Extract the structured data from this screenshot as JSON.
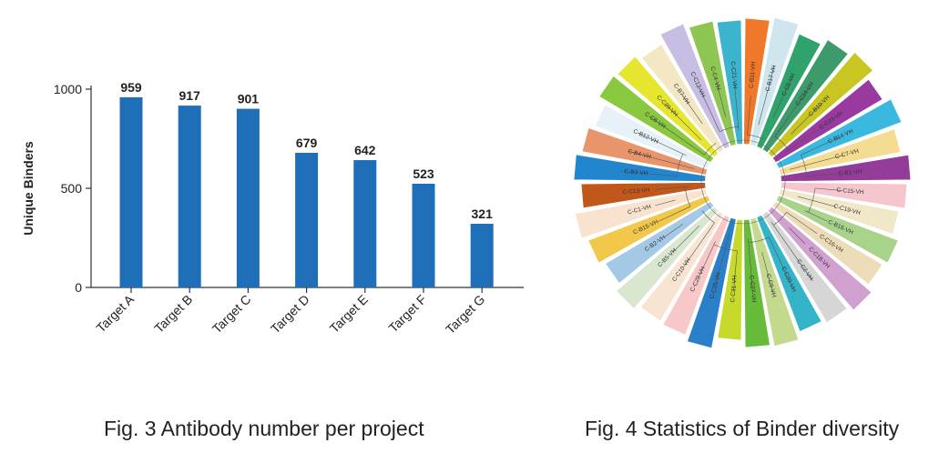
{
  "chart_data": [
    {
      "type": "bar",
      "title": "",
      "xlabel": "",
      "ylabel": "Unique Binders",
      "ylim": [
        0,
        1000
      ],
      "yticks": [
        0,
        500,
        1000
      ],
      "grid": false,
      "categories": [
        "Target A",
        "Target B",
        "Target C",
        "Target D",
        "Target E",
        "Target F",
        "Target G"
      ],
      "values": [
        959,
        917,
        901,
        679,
        642,
        523,
        321
      ],
      "bar_color": "#1f6fb8"
    },
    {
      "type": "sunburst",
      "title": "",
      "leaf_labels": [
        "C-B11-VH",
        "C-B17-VH",
        "C-C5-VH",
        "C-C34-VH",
        "C-B10-VH",
        "C-C23-VH",
        "C-B14-VH",
        "C-C7-VH",
        "C-B1-VH",
        "C-C15-VH",
        "C-C19-VH",
        "C-B16-VH",
        "C-C16-VH",
        "C-C18-VH",
        "C-C2-VH",
        "C-C20-VH",
        "C-C9-VH",
        "C-C27-VH",
        "C-C31-VH",
        "C-C25-VH",
        "C-C28-VH",
        "C-C10-VH",
        "C-B5-VH",
        "C-B2-VH",
        "C-B15-VH",
        "C-C1-VH",
        "C-C13-VH",
        "C-B3-VH",
        "C-B4-VH",
        "C-B12-VH",
        "C-C8-VH",
        "C-C29-VH",
        "C-B7-VH",
        "C-C12-VH",
        "C-C4-VH",
        "C-C21-VH"
      ],
      "segment_colors": [
        "#f0782a",
        "#cfe6ef",
        "#2fa36b",
        "#3d9a6a",
        "#c9c521",
        "#9a3aa0",
        "#3bb8de",
        "#f4dc92",
        "#943c99",
        "#f6c6cf",
        "#f0e8c8",
        "#a8d38b",
        "#ecdcb8",
        "#d0a0cf",
        "#d6d6d6",
        "#34b4c8",
        "#c3d98e",
        "#66bb3a",
        "#c7d92b",
        "#2a80c8",
        "#f8c8c8",
        "#f7e5d2",
        "#d9e6d0",
        "#a4c9e6",
        "#f2c84a",
        "#f9e3cf",
        "#c2571c",
        "#2286cf",
        "#e8956c",
        "#e6f2f7",
        "#8ac840",
        "#e6e62f",
        "#f4e7c4",
        "#c8bde2",
        "#8ec653",
        "#3db4ce"
      ]
    }
  ],
  "captions": {
    "left": "Fig. 3 Antibody number per project",
    "right": "Fig. 4 Statistics of Binder diversity"
  }
}
